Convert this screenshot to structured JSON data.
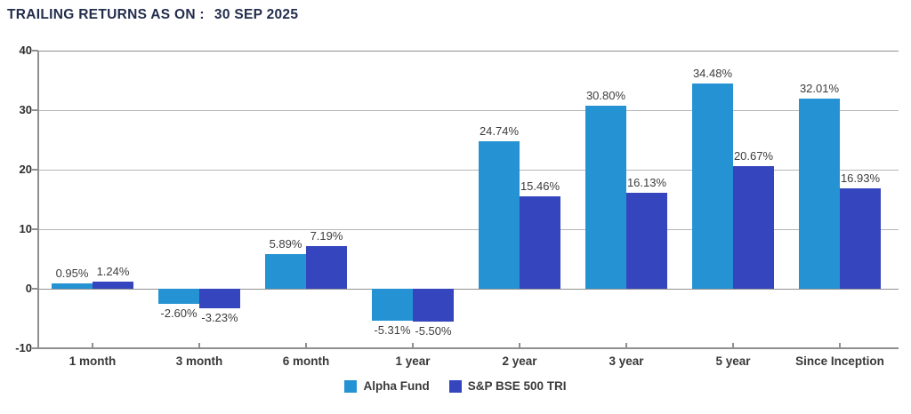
{
  "title": {
    "label": "TRAILING RETURNS AS ON :",
    "date": "30 SEP 2025"
  },
  "colors": {
    "alpha_fund": "#2593d3",
    "sp_bse_500_tri": "#3545bd",
    "title_text": "#232d4c",
    "grid_line": "#b6b6b6",
    "axis_line": "#8f8f8f",
    "value_label_text": "#3d3d3d"
  },
  "chart_data": {
    "type": "bar",
    "title": "TRAILING RETURNS AS ON : 30 SEP 2025",
    "categories": [
      "1 month",
      "3 month",
      "6 month",
      "1 year",
      "2 year",
      "3 year",
      "5 year",
      "Since Inception"
    ],
    "series": [
      {
        "name": "Alpha Fund",
        "color": "#2593d3",
        "values": [
          0.95,
          -2.6,
          5.89,
          -5.31,
          24.74,
          30.8,
          34.48,
          32.01
        ],
        "value_labels": [
          "0.95%",
          "-2.60%",
          "5.89%",
          "-5.31%",
          "24.74%",
          "30.80%",
          "34.48%",
          "32.01%"
        ]
      },
      {
        "name": "S&P BSE 500 TRI",
        "color": "#3545bd",
        "values": [
          1.24,
          -3.23,
          7.19,
          -5.5,
          15.46,
          16.13,
          20.67,
          16.93
        ],
        "value_labels": [
          "1.24%",
          "-3.23%",
          "7.19%",
          "-5.50%",
          "15.46%",
          "16.13%",
          "20.67%",
          "16.93%"
        ]
      }
    ],
    "y_ticks": [
      40,
      30,
      20,
      10,
      0,
      -10
    ],
    "ylim": [
      -10,
      40
    ],
    "grid": true,
    "legend_position": "bottom"
  }
}
